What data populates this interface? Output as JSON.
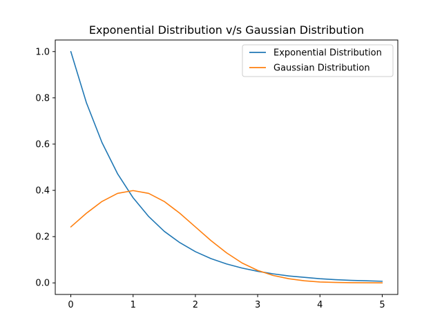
{
  "chart_data": {
    "type": "line",
    "title": "Exponential Distribution v/s Gaussian Distribution",
    "xlabel": "",
    "ylabel": "",
    "xlim": [
      -0.25,
      5.25
    ],
    "ylim": [
      -0.05,
      1.05
    ],
    "xticks": [
      0,
      1,
      2,
      3,
      4,
      5
    ],
    "xtick_labels": [
      "0",
      "1",
      "2",
      "3",
      "4",
      "5"
    ],
    "yticks": [
      0.0,
      0.2,
      0.4,
      0.6,
      0.8,
      1.0
    ],
    "ytick_labels": [
      "0.0",
      "0.2",
      "0.4",
      "0.6",
      "0.8",
      "1.0"
    ],
    "grid": false,
    "legend_position": "top-right",
    "x": [
      0,
      0.25,
      0.5,
      0.75,
      1,
      1.25,
      1.5,
      1.75,
      2,
      2.25,
      2.5,
      2.75,
      3,
      3.25,
      3.5,
      3.75,
      4,
      4.25,
      4.5,
      4.75,
      5
    ],
    "series": [
      {
        "name": "Exponential Distribution",
        "color": "#1f77b4",
        "values": [
          1.0,
          0.779,
          0.607,
          0.472,
          0.368,
          0.287,
          0.223,
          0.174,
          0.135,
          0.105,
          0.082,
          0.064,
          0.05,
          0.039,
          0.03,
          0.024,
          0.018,
          0.014,
          0.011,
          0.009,
          0.007
        ]
      },
      {
        "name": "Gaussian Distribution",
        "color": "#ff7f0e",
        "values": [
          0.242,
          0.301,
          0.352,
          0.387,
          0.399,
          0.387,
          0.352,
          0.301,
          0.242,
          0.183,
          0.13,
          0.086,
          0.054,
          0.032,
          0.018,
          0.009,
          0.004,
          0.002,
          0.001,
          0.0004,
          0.0001
        ]
      }
    ]
  }
}
